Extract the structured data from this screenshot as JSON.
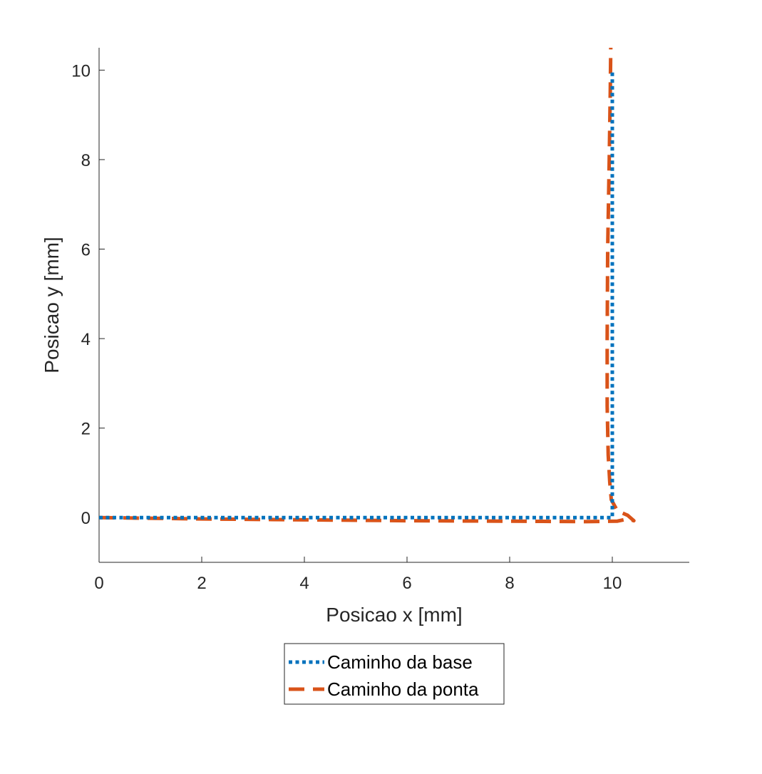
{
  "chart_data": {
    "type": "line",
    "title": "",
    "xlabel": "Posicao x [mm]",
    "ylabel": "Posicao y [mm]",
    "xlim": [
      0,
      11.5
    ],
    "ylim": [
      -1,
      10.5
    ],
    "xticks": [
      0,
      2,
      4,
      6,
      8,
      10
    ],
    "yticks": [
      0,
      2,
      4,
      6,
      8,
      10
    ],
    "grid": false,
    "legend_position": "bottom-outside",
    "series": [
      {
        "name": "Caminho da base",
        "style": "dotted",
        "color": "#0072BD",
        "x": [
          0,
          10,
          10
        ],
        "y": [
          0,
          0,
          10
        ]
      },
      {
        "name": "Caminho da ponta",
        "style": "dashed",
        "color": "#D95319",
        "x": [
          0,
          2,
          4,
          6,
          8,
          9.5,
          10.1,
          10.3,
          10.42,
          10.3,
          10.1,
          9.98,
          9.95,
          9.92,
          9.9,
          9.9,
          9.91,
          9.94,
          9.96,
          9.97
        ],
        "y": [
          0,
          -0.03,
          -0.05,
          -0.07,
          -0.08,
          -0.09,
          -0.08,
          -0.03,
          -0.07,
          0.05,
          0.15,
          0.4,
          0.8,
          1.4,
          2.5,
          4,
          6,
          8,
          9.5,
          10.5
        ]
      }
    ]
  }
}
